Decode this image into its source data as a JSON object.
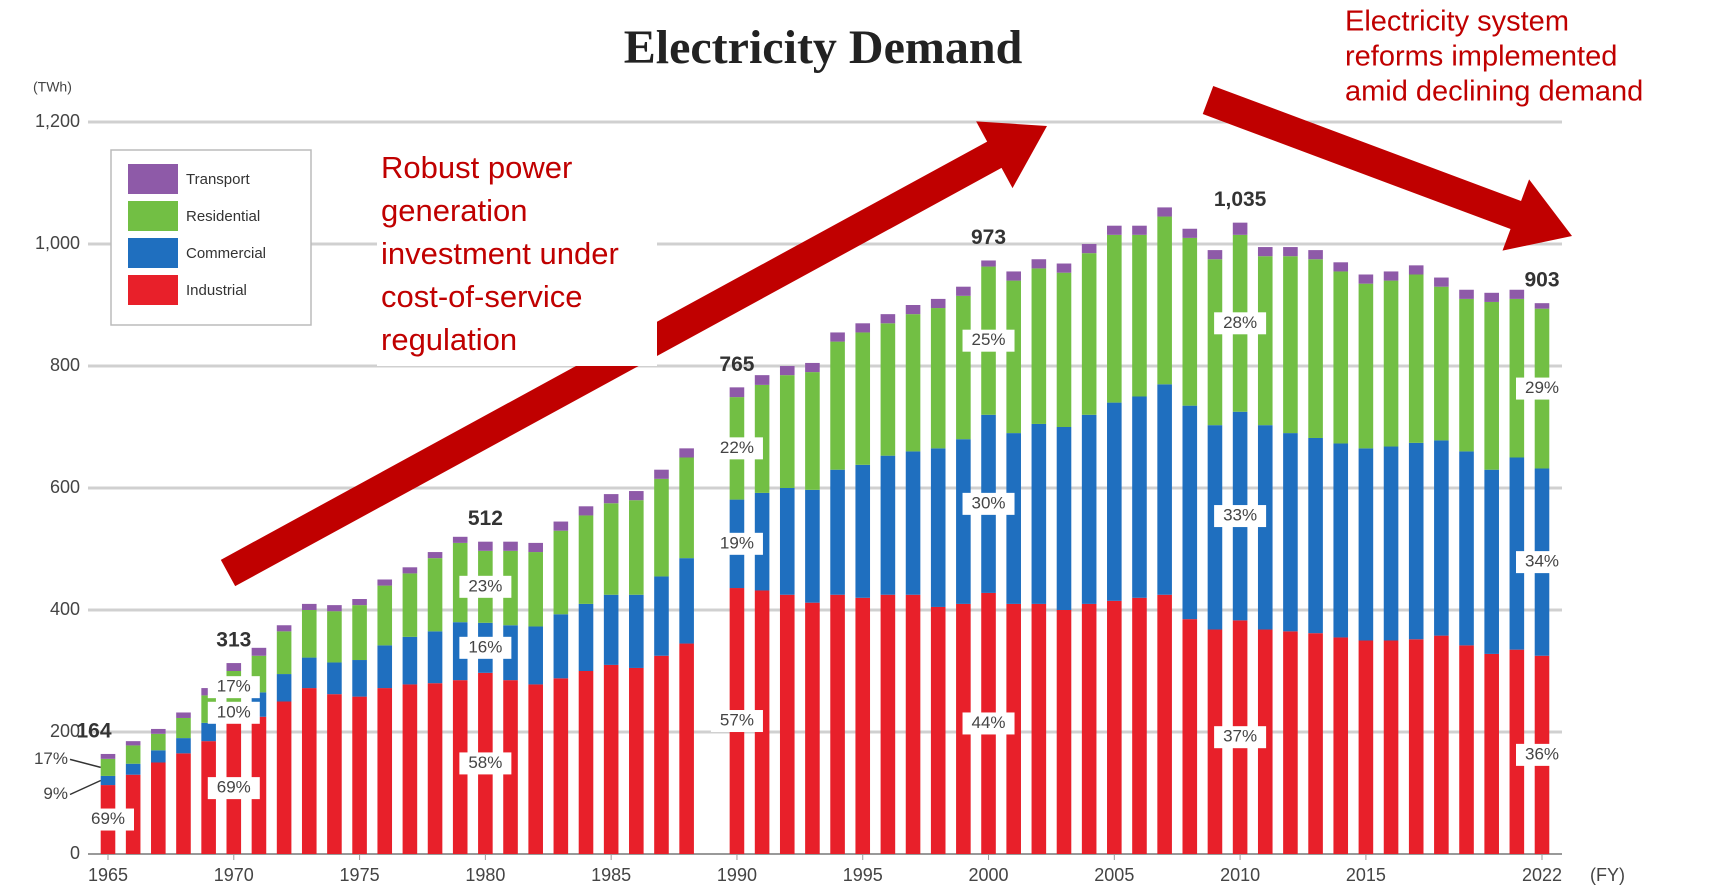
{
  "chart_data": {
    "type": "stacked_bar",
    "title": "Electricity Demand",
    "y_unit": "(TWh)",
    "x_unit": "(FY)",
    "ylim": [
      0,
      1200
    ],
    "yticks": [
      0,
      200,
      400,
      600,
      800,
      {
        "value": 1000,
        "label": "1,000"
      },
      {
        "value": 1200,
        "label": "1,200"
      }
    ],
    "grid": true,
    "legend": "upper left",
    "categories": [
      "1965",
      null,
      null,
      null,
      null,
      "1970",
      null,
      null,
      null,
      null,
      "1975",
      null,
      null,
      null,
      null,
      "1980",
      null,
      null,
      null,
      null,
      "1985",
      null,
      null,
      null,
      null,
      "1990",
      null,
      null,
      null,
      null,
      "1995",
      null,
      null,
      null,
      null,
      "2000",
      null,
      null,
      null,
      null,
      "2005",
      null,
      null,
      null,
      null,
      "2010",
      null,
      null,
      null,
      null,
      "2015",
      null,
      null,
      null,
      null,
      null,
      null,
      "2022"
    ],
    "series": [
      {
        "name": "Industrial",
        "color": "#e8202a",
        "values": [
          113,
          130,
          150,
          165,
          185,
          216,
          225,
          250,
          272,
          262,
          258,
          272,
          278,
          280,
          285,
          297,
          285,
          278,
          288,
          300,
          310,
          305,
          325,
          345,
          null,
          436,
          432,
          425,
          412,
          425,
          420,
          425,
          425,
          405,
          410,
          428,
          410,
          410,
          400,
          410,
          415,
          420,
          425,
          385,
          368,
          383,
          368,
          365,
          362,
          355,
          350,
          350,
          352,
          358,
          342,
          328,
          335,
          325
        ]
      },
      {
        "name": "Commercial",
        "color": "#1f6fbf",
        "values": [
          15,
          18,
          20,
          25,
          30,
          31,
          40,
          45,
          50,
          52,
          60,
          70,
          78,
          85,
          95,
          82,
          90,
          95,
          105,
          110,
          115,
          120,
          130,
          140,
          null,
          145,
          160,
          175,
          185,
          205,
          218,
          228,
          235,
          260,
          270,
          292,
          280,
          295,
          300,
          310,
          325,
          330,
          345,
          350,
          335,
          342,
          335,
          325,
          320,
          318,
          315,
          318,
          322,
          320,
          318,
          302,
          315,
          307
        ]
      },
      {
        "name": "Residential",
        "color": "#72bf44",
        "values": [
          28,
          30,
          27,
          33,
          45,
          53,
          60,
          70,
          78,
          84,
          90,
          98,
          104,
          120,
          130,
          118,
          122,
          122,
          137,
          145,
          150,
          155,
          160,
          165,
          null,
          168,
          177,
          185,
          193,
          210,
          217,
          217,
          225,
          230,
          235,
          243,
          250,
          255,
          253,
          265,
          275,
          265,
          275,
          275,
          272,
          290,
          277,
          290,
          293,
          282,
          270,
          272,
          276,
          252,
          250,
          275,
          260,
          262
        ]
      },
      {
        "name": "Transport",
        "color": "#8e5aa8",
        "values": [
          8,
          7,
          8,
          9,
          12,
          13,
          13,
          10,
          10,
          10,
          10,
          10,
          10,
          10,
          10,
          15,
          15,
          15,
          15,
          15,
          15,
          15,
          15,
          15,
          null,
          16,
          16,
          15,
          15,
          15,
          15,
          15,
          15,
          15,
          15,
          10,
          15,
          15,
          15,
          15,
          15,
          15,
          15,
          15,
          15,
          20,
          15,
          15,
          15,
          15,
          15,
          15,
          15,
          15,
          15,
          15,
          15,
          9
        ]
      }
    ],
    "total_labels": [
      {
        "category": "1965",
        "value": 164,
        "label": "164"
      },
      {
        "category": "1970",
        "value": 313,
        "label": "313"
      },
      {
        "category": "1980",
        "value": 512,
        "label": "512"
      },
      {
        "category": "1990",
        "value": 765,
        "label": "765"
      },
      {
        "category": "2000",
        "value": 973,
        "label": "973"
      },
      {
        "category": "2010",
        "value": 1035,
        "label": "1,035"
      },
      {
        "category": "2022",
        "value": 903,
        "label": "903"
      }
    ],
    "share_labels": [
      {
        "category": "1965",
        "series": "Industrial",
        "text": "69%"
      },
      {
        "category": "1965",
        "series": "Commercial",
        "text": "9%"
      },
      {
        "category": "1965",
        "series": "Residential",
        "text": "17%"
      },
      {
        "category": "1970",
        "series": "Industrial",
        "text": "69%"
      },
      {
        "category": "1970",
        "series": "Commercial",
        "text": "10%"
      },
      {
        "category": "1970",
        "series": "Residential",
        "text": "17%"
      },
      {
        "category": "1980",
        "series": "Industrial",
        "text": "58%"
      },
      {
        "category": "1980",
        "series": "Commercial",
        "text": "16%"
      },
      {
        "category": "1980",
        "series": "Residential",
        "text": "23%"
      },
      {
        "category": "1990",
        "series": "Industrial",
        "text": "57%"
      },
      {
        "category": "1990",
        "series": "Commercial",
        "text": "19%"
      },
      {
        "category": "1990",
        "series": "Residential",
        "text": "22%"
      },
      {
        "category": "2000",
        "series": "Industrial",
        "text": "44%"
      },
      {
        "category": "2000",
        "series": "Commercial",
        "text": "30%"
      },
      {
        "category": "2000",
        "series": "Residential",
        "text": "25%"
      },
      {
        "category": "2010",
        "series": "Industrial",
        "text": "37%"
      },
      {
        "category": "2010",
        "series": "Commercial",
        "text": "33%"
      },
      {
        "category": "2010",
        "series": "Residential",
        "text": "28%"
      },
      {
        "category": "2022",
        "series": "Industrial",
        "text": "36%"
      },
      {
        "category": "2022",
        "series": "Commercial",
        "text": "34%"
      },
      {
        "category": "2022",
        "series": "Residential",
        "text": "29%"
      }
    ],
    "annotations": [
      {
        "lines": [
          "Robust power",
          "generation",
          "investment under",
          "cost-of-service",
          "regulation"
        ]
      },
      {
        "lines": [
          "Electricity system",
          "reforms implemented",
          "amid declining demand"
        ]
      }
    ]
  }
}
